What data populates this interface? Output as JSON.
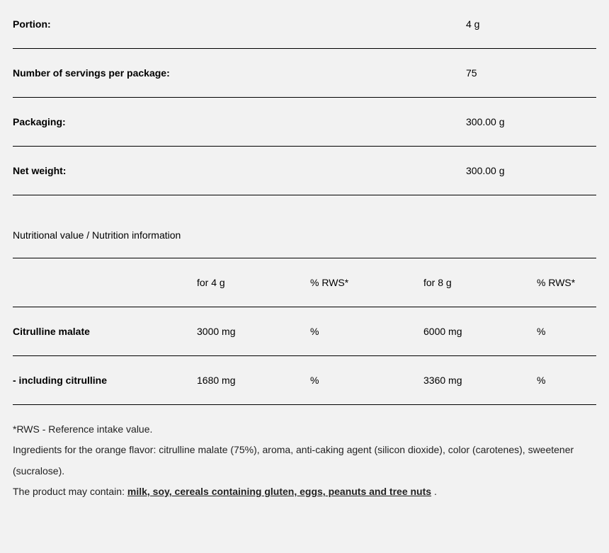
{
  "info_rows": [
    {
      "label": "Portion:",
      "value": "4 g"
    },
    {
      "label": "Number of servings per package:",
      "value": "75"
    },
    {
      "label": "Packaging:",
      "value": "300.00 g"
    },
    {
      "label": "Net weight:",
      "value": "300.00 g"
    }
  ],
  "nutrition": {
    "section_title": "Nutritional value / Nutrition information",
    "headers": {
      "col1": "",
      "col2": "for 4 g",
      "col3": "% RWS*",
      "col4": "for 8 g",
      "col5": "% RWS*"
    },
    "rows": [
      {
        "name": "Citrulline malate",
        "bold": true,
        "v4g": "3000 mg",
        "rws4": "%",
        "v8g": "6000 mg",
        "rws8": "%"
      },
      {
        "name": "- including citrulline",
        "bold": true,
        "v4g": "1680 mg",
        "rws4": "%",
        "v8g": "3360 mg",
        "rws8": "%"
      }
    ]
  },
  "footer": {
    "rws_note": "*RWS - Reference intake value.",
    "ingredients": "Ingredients for the orange flavor: citrulline malate (75%), aroma, anti-caking agent (silicon dioxide), color (carotenes), sweetener (sucralose).",
    "contain_prefix": "The product may contain: ",
    "contain_allergens": "milk, soy, cereals containing gluten, eggs, peanuts and tree nuts",
    "contain_suffix": " ."
  }
}
